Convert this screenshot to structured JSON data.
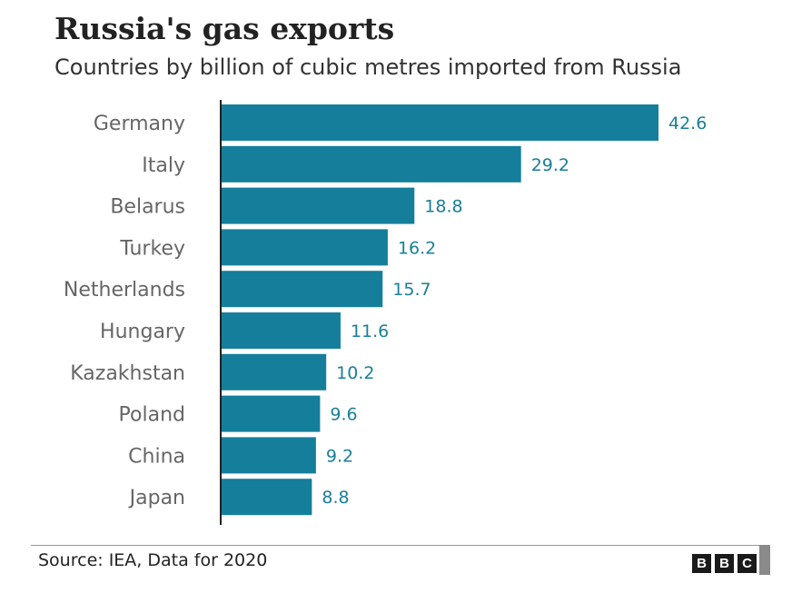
{
  "title": "Russia's gas exports",
  "subtitle": "Countries by billion of cubic metres imported from Russia",
  "source": "Source: IEA, Data for 2020",
  "logo": [
    "B",
    "B",
    "C"
  ],
  "colors": {
    "bar": "#157f9b",
    "value_text": "#1a7e99"
  },
  "chart_data": {
    "type": "bar",
    "orientation": "horizontal",
    "title": "Russia's gas exports",
    "subtitle": "Countries by billion of cubic metres imported from Russia",
    "categories": [
      "Germany",
      "Italy",
      "Belarus",
      "Turkey",
      "Netherlands",
      "Hungary",
      "Kazakhstan",
      "Poland",
      "China",
      "Japan"
    ],
    "values": [
      42.6,
      29.2,
      18.8,
      16.2,
      15.7,
      11.6,
      10.2,
      9.6,
      9.2,
      8.8
    ],
    "data_labels": [
      "42.6",
      "29.2",
      "18.8",
      "16.2",
      "15.7",
      "11.6",
      "10.2",
      "9.6",
      "9.2",
      "8.8"
    ],
    "xlim": [
      0,
      42.6
    ],
    "grid": false,
    "legend": "none"
  }
}
